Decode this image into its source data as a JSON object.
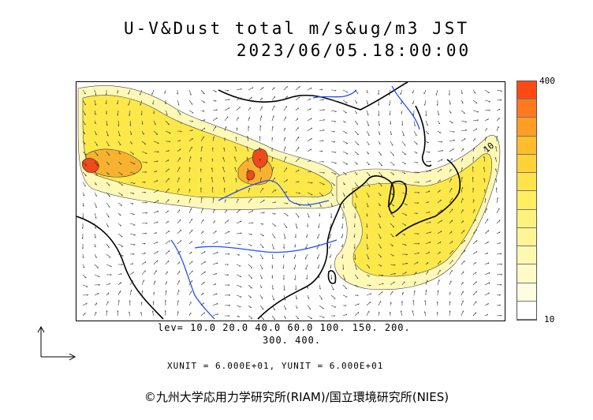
{
  "header": {
    "title": "U-V&Dust total m/s&ug/m3 JST",
    "datetime": "2023/06/05.18:00:00"
  },
  "colorbar": {
    "max_label": "400",
    "min_label": "10",
    "colors": [
      "#ff4a14",
      "#ff7a1e",
      "#ff9e24",
      "#ffbc2c",
      "#ffd23a",
      "#ffe34c",
      "#ffee62",
      "#fff27c",
      "#fff596",
      "#fff8b0",
      "#fffbc8",
      "#fffde0",
      "#ffffff"
    ]
  },
  "legend": {
    "levels_line1": "lev= 10.0 20.0 40.0 60.0 100. 150. 200.",
    "levels_line2": "300. 400.",
    "units": "XUNIT = 6.000E+01, YUNIT = 6.000E+01"
  },
  "credit": "©九州大学応用力学研究所(RIAM)/国立環境研究所(NIES)",
  "map": {
    "dust_color_low": "#fff9b8",
    "dust_color_mid": "#fde84a",
    "dust_color_high": "#f7b330",
    "dust_color_peak": "#ef4a1c",
    "coast_color": "#000000",
    "river_color": "#1e50ff",
    "contour_label": "10"
  }
}
